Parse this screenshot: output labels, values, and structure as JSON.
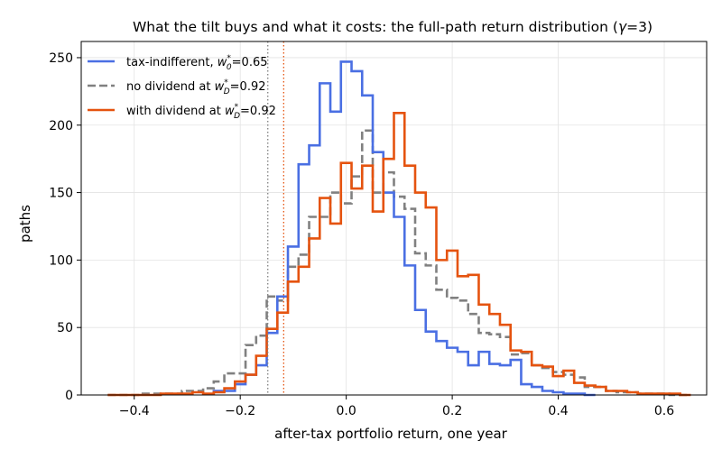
{
  "chart_data": {
    "type": "histogram",
    "title_prefix": "What the tilt buys and what it costs: the full-path return distribution (",
    "title_gamma": "γ",
    "title_suffix": "=3)",
    "xlabel": "after-tax portfolio return, one year",
    "ylabel": "paths",
    "xlim": [
      -0.5,
      0.68
    ],
    "ylim": [
      0,
      262
    ],
    "xticks": [
      -0.4,
      -0.2,
      0.0,
      0.2,
      0.4,
      0.6
    ],
    "xtick_labels": [
      "−0.4",
      "−0.2",
      "0.0",
      "0.2",
      "0.4",
      "0.6"
    ],
    "yticks": [
      0,
      50,
      100,
      150,
      200,
      250
    ],
    "ytick_labels": [
      "0",
      "50",
      "100",
      "150",
      "200",
      "250"
    ],
    "grid": true,
    "legend_position": "upper-left",
    "series": [
      {
        "name_prefix": "tax-indifferent, ",
        "weight_var": "w",
        "weight_sup": "*",
        "weight_sub": "0",
        "weight_value": "=0.65",
        "color": "#4a6fe3",
        "dash": "solid",
        "bin_edges": [
          -0.25,
          -0.23,
          -0.21,
          -0.19,
          -0.17,
          -0.15,
          -0.13,
          -0.11,
          -0.09,
          -0.07,
          -0.05,
          -0.03,
          -0.01,
          0.01,
          0.03,
          0.05,
          0.07,
          0.09,
          0.11,
          0.13,
          0.15,
          0.17,
          0.19,
          0.21,
          0.23,
          0.25,
          0.27,
          0.29,
          0.31,
          0.33,
          0.35,
          0.37,
          0.39,
          0.41,
          0.43,
          0.45,
          0.47
        ],
        "counts": [
          3,
          3,
          8,
          15,
          22,
          46,
          73,
          110,
          171,
          185,
          231,
          210,
          247,
          240,
          222,
          180,
          150,
          132,
          96,
          63,
          47,
          40,
          35,
          32,
          22,
          32,
          23,
          22,
          26,
          8,
          6,
          3,
          2,
          1,
          1,
          0
        ]
      },
      {
        "name_prefix": "no dividend at ",
        "weight_var": "w",
        "weight_sup": "*",
        "weight_sub": "D",
        "weight_value": "=0.92",
        "color": "#808080",
        "dash": "dashed",
        "bin_edges": [
          -0.45,
          -0.39,
          -0.37,
          -0.35,
          -0.33,
          -0.31,
          -0.29,
          -0.27,
          -0.25,
          -0.23,
          -0.21,
          -0.19,
          -0.17,
          -0.15,
          -0.13,
          -0.11,
          -0.09,
          -0.07,
          -0.05,
          -0.03,
          -0.01,
          0.01,
          0.03,
          0.05,
          0.07,
          0.09,
          0.11,
          0.13,
          0.15,
          0.17,
          0.19,
          0.21,
          0.23,
          0.25,
          0.27,
          0.29,
          0.31,
          0.33,
          0.35,
          0.37,
          0.39,
          0.41,
          0.43,
          0.45,
          0.47,
          0.49,
          0.51,
          0.53,
          0.55,
          0.57,
          0.59,
          0.61,
          0.63,
          0.65
        ],
        "counts": [
          0,
          1,
          1,
          1,
          1,
          3,
          3,
          5,
          10,
          16,
          16,
          37,
          44,
          73,
          70,
          95,
          104,
          132,
          132,
          150,
          142,
          162,
          196,
          150,
          165,
          147,
          138,
          105,
          96,
          78,
          72,
          70,
          60,
          46,
          45,
          43,
          30,
          31,
          22,
          20,
          17,
          15,
          13,
          6,
          6,
          3,
          2,
          2,
          1,
          1,
          1,
          0,
          0
        ]
      },
      {
        "name_prefix": "with dividend at ",
        "weight_var": "w",
        "weight_sup": "*",
        "weight_sub": "D",
        "weight_value": "=0.92",
        "color": "#e5530f",
        "dash": "solid",
        "bin_edges": [
          -0.45,
          -0.39,
          -0.35,
          -0.33,
          -0.31,
          -0.29,
          -0.27,
          -0.25,
          -0.23,
          -0.21,
          -0.19,
          -0.17,
          -0.15,
          -0.13,
          -0.11,
          -0.09,
          -0.07,
          -0.05,
          -0.03,
          -0.01,
          0.01,
          0.03,
          0.05,
          0.07,
          0.09,
          0.11,
          0.13,
          0.15,
          0.17,
          0.19,
          0.21,
          0.23,
          0.25,
          0.27,
          0.29,
          0.31,
          0.33,
          0.35,
          0.37,
          0.39,
          0.41,
          0.43,
          0.45,
          0.47,
          0.49,
          0.51,
          0.53,
          0.55,
          0.57,
          0.59,
          0.61,
          0.63,
          0.65
        ],
        "counts": [
          0,
          0,
          1,
          1,
          1,
          2,
          1,
          2,
          5,
          10,
          15,
          29,
          49,
          61,
          84,
          95,
          116,
          146,
          127,
          172,
          153,
          170,
          136,
          175,
          209,
          170,
          150,
          139,
          100,
          107,
          88,
          89,
          67,
          60,
          52,
          33,
          32,
          22,
          21,
          14,
          18,
          9,
          7,
          6,
          3,
          3,
          2,
          1,
          1,
          1,
          1,
          0
        ]
      }
    ],
    "vlines": [
      {
        "x": -0.148,
        "color": "#808080",
        "style": "dotted"
      },
      {
        "x": -0.118,
        "color": "#e5530f",
        "style": "dotted"
      }
    ]
  }
}
